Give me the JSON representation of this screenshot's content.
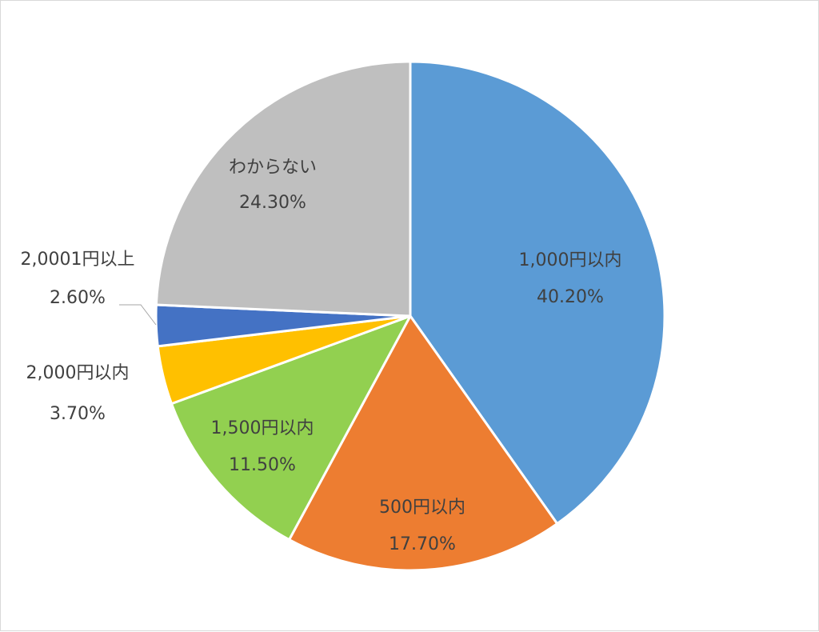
{
  "chart_data": {
    "type": "pie",
    "start_angle": "12 o'clock",
    "direction": "clockwise",
    "slices": [
      {
        "label": "1,000円以内",
        "value": 40.2,
        "value_label": "40.20%",
        "color": "#5b9bd5"
      },
      {
        "label": "500円以内",
        "value": 17.7,
        "value_label": "17.70%",
        "color": "#ed7d31"
      },
      {
        "label": "1,500円以内",
        "value": 11.5,
        "value_label": "11.50%",
        "color": "#92d050"
      },
      {
        "label": "2,000円以内",
        "value": 3.7,
        "value_label": "3.70%",
        "color": "#ffc000"
      },
      {
        "label": "2,0001円以上",
        "value": 2.6,
        "value_label": "2.60%",
        "color": "#4472c4"
      },
      {
        "label": "わからない",
        "value": 24.3,
        "value_label": "24.30%",
        "color": "#bfbfbf"
      }
    ]
  }
}
